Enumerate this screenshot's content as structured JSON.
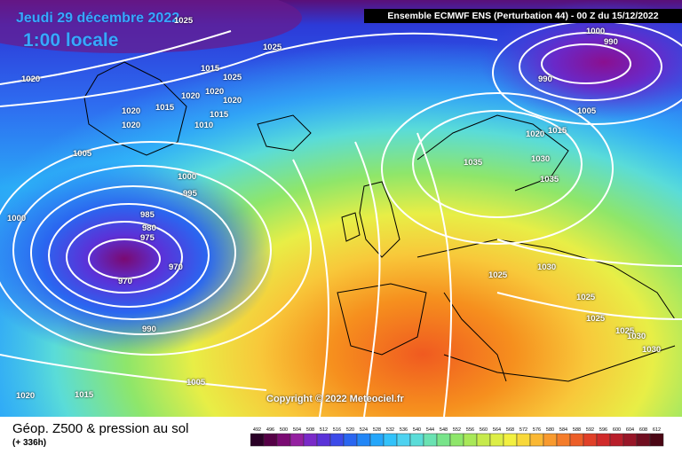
{
  "header": {
    "date_text": "Jeudi 29 décembre 2022",
    "hour_text": "1:00 locale",
    "model_text": "Ensemble ECMWF ENS  (Perturbation 44)  - 00 Z du 15/12/2022"
  },
  "footer": {
    "title": "Géop. Z500 & pression au sol",
    "subtitle": "(+ 336h)",
    "copyright": "Copyright © 2022 Meteociel.fr"
  },
  "pressure_labels": [
    "1025",
    "1025",
    "1020",
    "1015",
    "1025",
    "1020",
    "1020",
    "1020",
    "1015",
    "1010",
    "1020",
    "1015",
    "1020",
    "1005",
    "1000",
    "995",
    "985",
    "980",
    "975",
    "970",
    "970",
    "1000",
    "990",
    "1005",
    "1020",
    "1015",
    "990",
    "1000",
    "990",
    "1005",
    "1020",
    "1015",
    "1035",
    "1030",
    "1035",
    "1030",
    "1025",
    "1025",
    "1025",
    "1025",
    "1030",
    "1030"
  ],
  "legend": {
    "values": [
      "492",
      "496",
      "500",
      "504",
      "508",
      "512",
      "516",
      "520",
      "524",
      "528",
      "532",
      "536",
      "540",
      "544",
      "548",
      "552",
      "556",
      "560",
      "564",
      "568",
      "572",
      "576",
      "580",
      "584",
      "588",
      "592",
      "596",
      "600",
      "604",
      "608",
      "612"
    ],
    "colors": [
      "#2a0026",
      "#550046",
      "#7a0a72",
      "#9420a0",
      "#7a2ac8",
      "#5a32d8",
      "#3c4ae8",
      "#2a66f0",
      "#2286f6",
      "#24a6fa",
      "#32c2fa",
      "#4ed2f0",
      "#5adcd8",
      "#6ae2b2",
      "#78e48a",
      "#8ee66a",
      "#a8e858",
      "#c6ea4c",
      "#dcee46",
      "#f2f040",
      "#f8d83a",
      "#fab834",
      "#f89a2e",
      "#f47c2a",
      "#ec5e28",
      "#e04028",
      "#d02a2a",
      "#b81e2a",
      "#981628",
      "#700e20",
      "#4a0614"
    ]
  }
}
